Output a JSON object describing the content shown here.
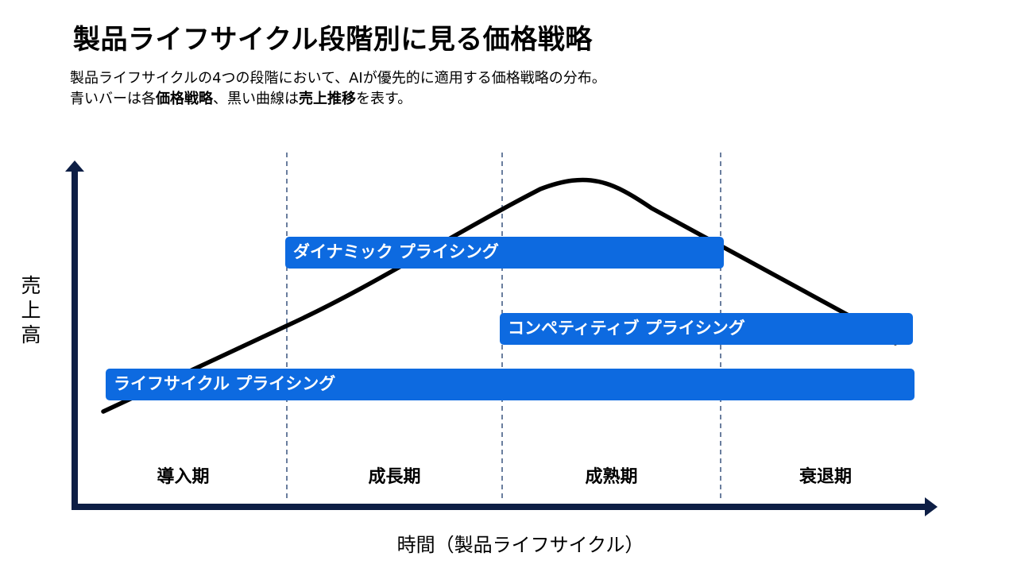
{
  "title": "製品ライフサイクル段階別に見る価格戦略",
  "subtitle": {
    "line1": "製品ライフサイクルの4つの段階において、AIが優先的に適用する価格戦略の分布。",
    "line2_a": "青いバーは各",
    "line2_b": "価格戦略",
    "line2_c": "、黒い曲線は",
    "line2_d": "売上推移",
    "line2_e": "を表す。"
  },
  "y_axis": {
    "chars": [
      "売",
      "上",
      "高"
    ]
  },
  "x_axis": {
    "label": "時間（製品ライフサイクル）"
  },
  "stages": [
    "導入期",
    "成長期",
    "成熟期",
    "衰退期"
  ],
  "strategies": {
    "dynamic": {
      "label": "ダイナミック プライシング",
      "stages": [
        "成長期",
        "成熟期"
      ]
    },
    "competitive": {
      "label": "コンペティティブ プライシング",
      "stages": [
        "成熟期",
        "衰退期"
      ]
    },
    "lifecycle": {
      "label": "ライフサイクル プライシング",
      "stages": [
        "導入期",
        "成長期",
        "成熟期",
        "衰退期"
      ]
    }
  },
  "colors": {
    "bar": "#0d6ae0",
    "axis": "#0d1e45",
    "curve": "#000000",
    "divider": "#1b3a6b"
  }
}
